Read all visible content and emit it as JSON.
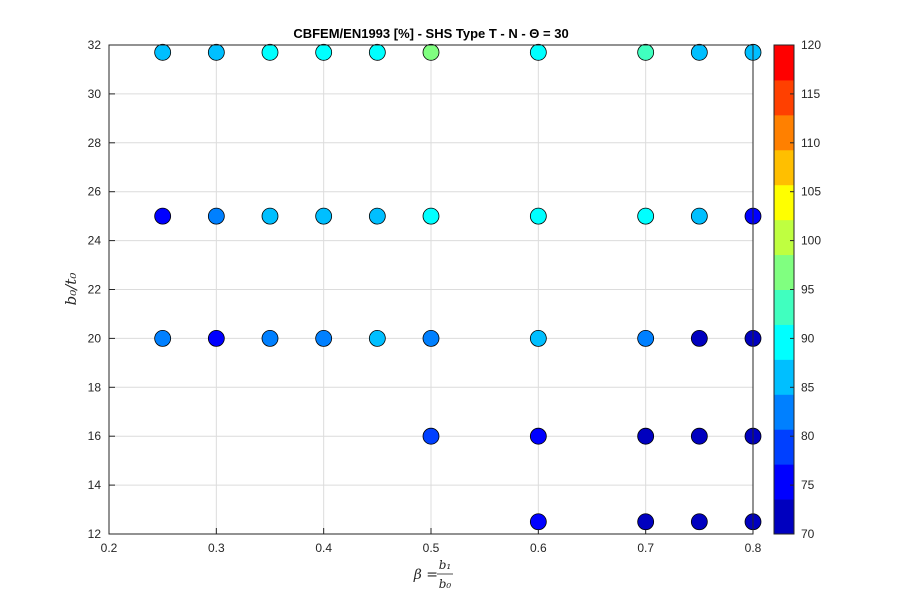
{
  "chart_data": {
    "type": "scatter",
    "title": "CBFEM/EN1993 [%] - SHS Type T - N - Θ = 30",
    "xlabel": {
      "main": "β = ",
      "num": "b₁",
      "den": "b₀"
    },
    "ylabel": "b₀/t₀",
    "xlim": [
      0.2,
      0.8
    ],
    "ylim": [
      12,
      32
    ],
    "xticks": [
      "0.2",
      "0.3",
      "0.4",
      "0.5",
      "0.6",
      "0.7",
      "0.8"
    ],
    "yticks": [
      "12",
      "14",
      "16",
      "18",
      "20",
      "22",
      "24",
      "26",
      "28",
      "30",
      "32"
    ],
    "grid": true,
    "colorbar": {
      "range": [
        70,
        120
      ],
      "ticks": [
        "70",
        "75",
        "80",
        "85",
        "90",
        "95",
        "100",
        "105",
        "110",
        "115",
        "120"
      ],
      "colors": [
        "#0000bf",
        "#0000ff",
        "#0040ff",
        "#0080ff",
        "#00bfff",
        "#00ffff",
        "#40ffbf",
        "#80ff80",
        "#bfff40",
        "#ffff00",
        "#ffbf00",
        "#ff8000",
        "#ff4000",
        "#ff0000"
      ]
    },
    "points": [
      {
        "x": 0.25,
        "y": 31.7,
        "v": 87
      },
      {
        "x": 0.3,
        "y": 31.7,
        "v": 87
      },
      {
        "x": 0.35,
        "y": 31.7,
        "v": 89
      },
      {
        "x": 0.4,
        "y": 31.7,
        "v": 89
      },
      {
        "x": 0.45,
        "y": 31.7,
        "v": 89
      },
      {
        "x": 0.5,
        "y": 31.7,
        "v": 97
      },
      {
        "x": 0.6,
        "y": 31.7,
        "v": 89
      },
      {
        "x": 0.7,
        "y": 31.7,
        "v": 93
      },
      {
        "x": 0.75,
        "y": 31.7,
        "v": 87
      },
      {
        "x": 0.8,
        "y": 31.7,
        "v": 87
      },
      {
        "x": 0.25,
        "y": 25,
        "v": 77
      },
      {
        "x": 0.3,
        "y": 25,
        "v": 83
      },
      {
        "x": 0.35,
        "y": 25,
        "v": 86
      },
      {
        "x": 0.4,
        "y": 25,
        "v": 86
      },
      {
        "x": 0.45,
        "y": 25,
        "v": 86
      },
      {
        "x": 0.5,
        "y": 25,
        "v": 89
      },
      {
        "x": 0.6,
        "y": 25,
        "v": 89
      },
      {
        "x": 0.7,
        "y": 25,
        "v": 89
      },
      {
        "x": 0.75,
        "y": 25,
        "v": 86
      },
      {
        "x": 0.8,
        "y": 25,
        "v": 76
      },
      {
        "x": 0.25,
        "y": 20,
        "v": 83
      },
      {
        "x": 0.3,
        "y": 20,
        "v": 76
      },
      {
        "x": 0.35,
        "y": 20,
        "v": 81
      },
      {
        "x": 0.4,
        "y": 20,
        "v": 81
      },
      {
        "x": 0.45,
        "y": 20,
        "v": 86
      },
      {
        "x": 0.5,
        "y": 20,
        "v": 83
      },
      {
        "x": 0.6,
        "y": 20,
        "v": 86
      },
      {
        "x": 0.7,
        "y": 20,
        "v": 83
      },
      {
        "x": 0.75,
        "y": 20,
        "v": 72
      },
      {
        "x": 0.8,
        "y": 20,
        "v": 72
      },
      {
        "x": 0.5,
        "y": 16,
        "v": 80
      },
      {
        "x": 0.6,
        "y": 16,
        "v": 77
      },
      {
        "x": 0.7,
        "y": 16,
        "v": 72
      },
      {
        "x": 0.75,
        "y": 16,
        "v": 72
      },
      {
        "x": 0.8,
        "y": 16,
        "v": 72
      },
      {
        "x": 0.6,
        "y": 12.5,
        "v": 76
      },
      {
        "x": 0.7,
        "y": 12.5,
        "v": 72
      },
      {
        "x": 0.75,
        "y": 12.5,
        "v": 72
      },
      {
        "x": 0.8,
        "y": 12.5,
        "v": 72
      }
    ]
  }
}
